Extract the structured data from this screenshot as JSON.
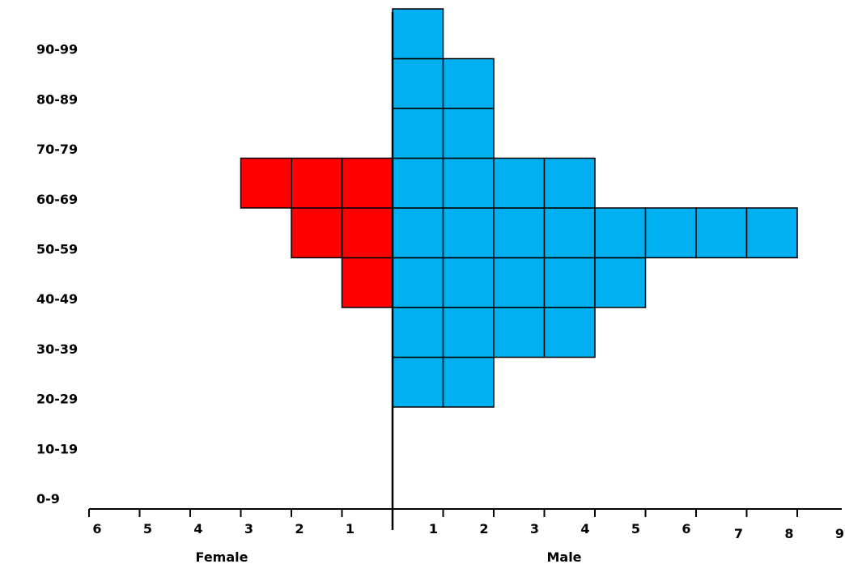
{
  "chart_data": {
    "type": "bar",
    "categories": [
      "0-9",
      "10-19",
      "20-29",
      "30-39",
      "40-49",
      "50-59",
      "60-69",
      "70-79",
      "80-89",
      "90-99"
    ],
    "series": [
      {
        "name": "Female",
        "values": [
          0,
          0,
          0,
          0,
          1,
          2,
          3,
          0,
          0,
          0
        ]
      },
      {
        "name": "Male",
        "values": [
          0,
          0,
          2,
          4,
          5,
          8,
          4,
          2,
          2,
          1
        ]
      }
    ],
    "female_ticks": [
      "6",
      "5",
      "4",
      "3",
      "2",
      "1"
    ],
    "male_ticks": [
      "1",
      "2",
      "3",
      "4",
      "5",
      "6",
      "7",
      "8",
      "9"
    ],
    "xlabel_left": "Female",
    "xlabel_right": "Male",
    "colors": {
      "Female": "#ff0000",
      "Male": "#00b0f0"
    },
    "grid": false
  }
}
